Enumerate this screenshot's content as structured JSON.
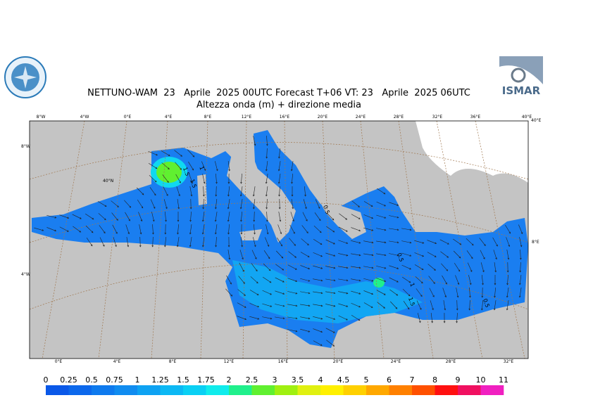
{
  "header": {
    "title": "NETTUNO-WAM  23   Aprile  2025 00UTC Forecast T+06 VT: 23   Aprile  2025 06UTC",
    "subtitle": "Altezza onda (m) + direzione media",
    "logo_right": "ISMAR"
  },
  "map": {
    "top_labels": [
      "8°W",
      "4°W",
      "0°E",
      "4°E",
      "8°E",
      "12°E",
      "16°E",
      "20°E",
      "24°E",
      "28°E",
      "32°E",
      "36°E",
      "40°E"
    ],
    "left_labels": [
      "8°W",
      "40°N",
      "4°W"
    ],
    "right_labels": [
      "40°E",
      "8°E"
    ],
    "bottom_labels": [
      "0°E",
      "4°E",
      "8°E",
      "12°E",
      "16°E",
      "20°E",
      "24°E",
      "28°E",
      "32°E"
    ],
    "contour_labels": [
      "1.5",
      "1",
      "1.5",
      "0.5",
      "0.5",
      "1",
      "1.5",
      "0.5"
    ]
  },
  "colorbar": {
    "labels": [
      "0",
      "0.25",
      "0.5",
      "0.75",
      "1",
      "1.25",
      "1.5",
      "1.75",
      "2",
      "2.5",
      "3",
      "3.5",
      "4",
      "4.5",
      "5",
      "6",
      "7",
      "8",
      "9",
      "10",
      "11"
    ],
    "colors": [
      "#0a58e8",
      "#0c68ec",
      "#0e7aee",
      "#108cf0",
      "#0ea2f2",
      "#0cb8f4",
      "#0ad0f4",
      "#10ecec",
      "#20f08c",
      "#60f030",
      "#a0f010",
      "#e0f010",
      "#fff000",
      "#ffd000",
      "#ffa800",
      "#ff8000",
      "#ff5000",
      "#ff1010",
      "#f01060",
      "#f020c0"
    ]
  }
}
